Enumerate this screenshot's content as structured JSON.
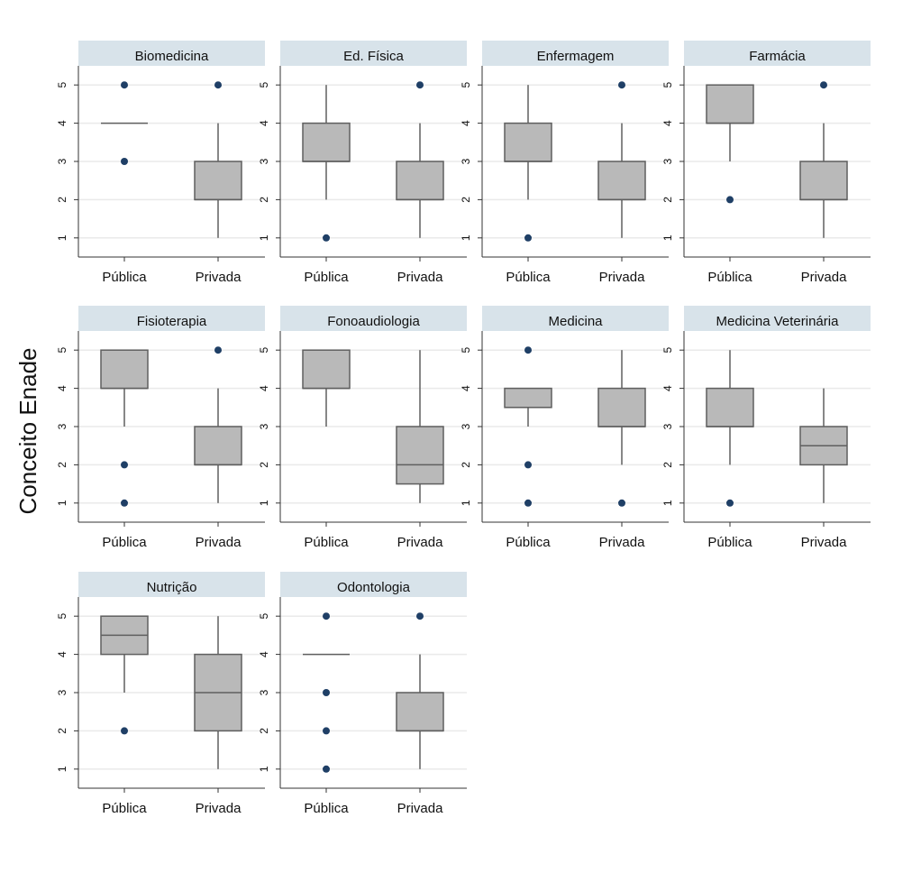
{
  "chart_data": {
    "type": "box",
    "ylabel": "Conceito Enade",
    "xlabel": "",
    "ylim": [
      0.5,
      5.5
    ],
    "yticks": [
      1,
      2,
      3,
      4,
      5
    ],
    "categories": [
      "Pública",
      "Privada"
    ],
    "grid": true,
    "colors": {
      "box": "#b9b9b9",
      "box_stroke": "#5f5f5f",
      "outlier": "#1f3f66",
      "strip": "#d8e3ea",
      "grid": "#eaeaea"
    },
    "panels": [
      {
        "title": "Biomedicina",
        "groups": [
          {
            "category": "Pública",
            "whislo": 4,
            "q1": 4,
            "med": 4,
            "q3": 4,
            "whishi": 4,
            "fliers": [
              3,
              5
            ]
          },
          {
            "category": "Privada",
            "whislo": 1,
            "q1": 2,
            "med": 2,
            "q3": 3,
            "whishi": 4,
            "fliers": [
              5
            ]
          }
        ]
      },
      {
        "title": "Ed. Física",
        "groups": [
          {
            "category": "Pública",
            "whislo": 2,
            "q1": 3,
            "med": 3,
            "q3": 4,
            "whishi": 5,
            "fliers": [
              1
            ]
          },
          {
            "category": "Privada",
            "whislo": 1,
            "q1": 2,
            "med": 2,
            "q3": 3,
            "whishi": 4,
            "fliers": [
              5
            ]
          }
        ]
      },
      {
        "title": "Enfermagem",
        "groups": [
          {
            "category": "Pública",
            "whislo": 2,
            "q1": 3,
            "med": 3,
            "q3": 4,
            "whishi": 5,
            "fliers": [
              1
            ]
          },
          {
            "category": "Privada",
            "whislo": 1,
            "q1": 2,
            "med": 2,
            "q3": 3,
            "whishi": 4,
            "fliers": [
              5
            ]
          }
        ]
      },
      {
        "title": "Farmácia",
        "groups": [
          {
            "category": "Pública",
            "whislo": 3,
            "q1": 4,
            "med": 4,
            "q3": 5,
            "whishi": 5,
            "fliers": [
              2
            ]
          },
          {
            "category": "Privada",
            "whislo": 1,
            "q1": 2,
            "med": 2,
            "q3": 3,
            "whishi": 4,
            "fliers": [
              5
            ]
          }
        ]
      },
      {
        "title": "Fisioterapia",
        "groups": [
          {
            "category": "Pública",
            "whislo": 3,
            "q1": 4,
            "med": 4,
            "q3": 5,
            "whishi": 5,
            "fliers": [
              1,
              2
            ]
          },
          {
            "category": "Privada",
            "whislo": 1,
            "q1": 2,
            "med": 2,
            "q3": 3,
            "whishi": 4,
            "fliers": [
              5
            ]
          }
        ]
      },
      {
        "title": "Fonoaudiologia",
        "groups": [
          {
            "category": "Pública",
            "whislo": 3,
            "q1": 4,
            "med": 4,
            "q3": 5,
            "whishi": 5,
            "fliers": []
          },
          {
            "category": "Privada",
            "whislo": 1,
            "q1": 1.5,
            "med": 2,
            "q3": 3,
            "whishi": 5,
            "fliers": []
          }
        ]
      },
      {
        "title": "Medicina",
        "groups": [
          {
            "category": "Pública",
            "whislo": 3,
            "q1": 3.5,
            "med": 3.5,
            "q3": 4,
            "whishi": 4,
            "fliers": [
              1,
              2,
              5
            ]
          },
          {
            "category": "Privada",
            "whislo": 2,
            "q1": 3,
            "med": 3,
            "q3": 4,
            "whishi": 5,
            "fliers": [
              1
            ]
          }
        ]
      },
      {
        "title": "Medicina Veterinária",
        "groups": [
          {
            "category": "Pública",
            "whislo": 2,
            "q1": 3,
            "med": 3,
            "q3": 4,
            "whishi": 5,
            "fliers": [
              1
            ]
          },
          {
            "category": "Privada",
            "whislo": 1,
            "q1": 2,
            "med": 2.5,
            "q3": 3,
            "whishi": 4,
            "fliers": []
          }
        ]
      },
      {
        "title": "Nutrição",
        "groups": [
          {
            "category": "Pública",
            "whislo": 3,
            "q1": 4,
            "med": 4.5,
            "q3": 5,
            "whishi": 5,
            "fliers": [
              2
            ]
          },
          {
            "category": "Privada",
            "whislo": 1,
            "q1": 2,
            "med": 3,
            "q3": 4,
            "whishi": 5,
            "fliers": []
          }
        ]
      },
      {
        "title": "Odontologia",
        "groups": [
          {
            "category": "Pública",
            "whislo": 4,
            "q1": 4,
            "med": 4,
            "q3": 4,
            "whishi": 4,
            "fliers": [
              1,
              2,
              3,
              5
            ]
          },
          {
            "category": "Privada",
            "whislo": 1,
            "q1": 2,
            "med": 2,
            "q3": 3,
            "whishi": 4,
            "fliers": [
              5
            ]
          }
        ]
      }
    ]
  }
}
